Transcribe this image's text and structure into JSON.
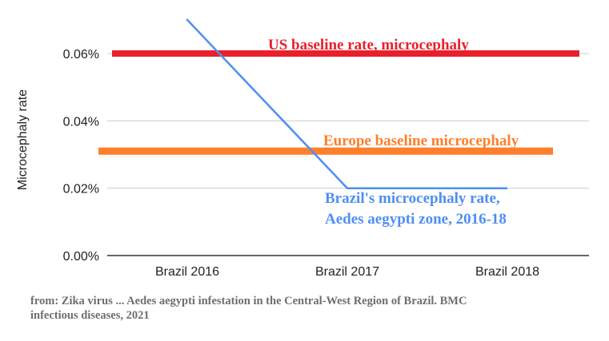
{
  "chart_data": {
    "type": "line",
    "categories": [
      "Brazil 2016",
      "Brazil 2017",
      "Brazil 2018"
    ],
    "series": [
      {
        "key": "brazil",
        "values": [
          0.07,
          0.02,
          0.02
        ],
        "color": "#4f8ef2"
      },
      {
        "key": "us",
        "values": [
          0.06,
          0.06,
          0.06
        ],
        "color": "#e8202b"
      },
      {
        "key": "europe",
        "values": [
          0.031,
          0.031,
          0.031
        ],
        "color": "#fd7f2c"
      }
    ],
    "ylabel": "Microcephaly rate",
    "ylim": [
      0,
      0.06
    ],
    "yticks": [
      "0.00%",
      "0.02%",
      "0.04%",
      "0.06%"
    ],
    "ytick_values": [
      0,
      0.02,
      0.04,
      0.06
    ],
    "grid": true,
    "annotations": [
      {
        "key": "us",
        "lines": [
          "US baseline rate, microcephaly"
        ],
        "color": "#e8202b"
      },
      {
        "key": "europe",
        "lines": [
          "Europe baseline microcephaly"
        ],
        "color": "#fd7f2c"
      },
      {
        "key": "brazil",
        "lines": [
          "Brazil's microcephaly rate,",
          "Aedes aegypti zone, 2016-18"
        ],
        "color": "#4f8ef2"
      }
    ]
  },
  "caption": {
    "line1": "from: Zika virus ... Aedes aegypti infestation in the Central-West Region of Brazil. BMC",
    "line2": "infectious diseases, 2021"
  }
}
